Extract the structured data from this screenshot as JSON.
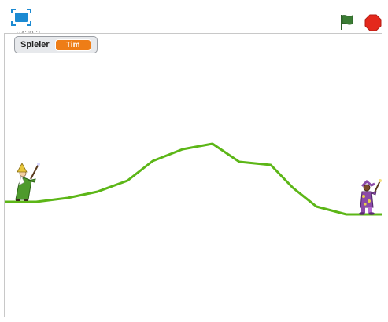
{
  "player": {
    "version": "v439.2",
    "controls": {
      "fullscreen_icon": "fullscreen-icon",
      "green_flag_icon": "green-flag-icon",
      "stop_icon": "stop-sign-icon",
      "green_flag_color": "#3b7d34",
      "stop_color": "#e4281c"
    }
  },
  "stage": {
    "monitor": {
      "label": "Spieler",
      "value": "Tim",
      "value_color": "#ee7d16"
    },
    "terrain": {
      "color": "#5cb617"
    },
    "sprites": [
      {
        "name": "wizard",
        "robe_color": "#4e9a2d"
      },
      {
        "name": "jester",
        "robe_color": "#8a4aa7"
      }
    ]
  }
}
